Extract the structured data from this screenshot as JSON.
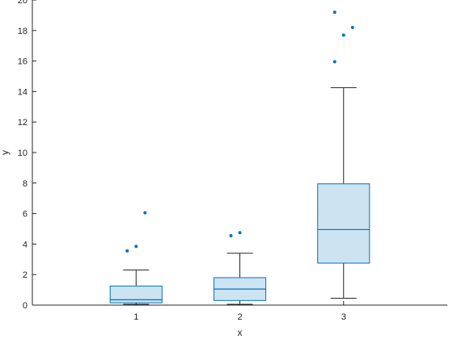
{
  "chart_data": {
    "type": "box",
    "xlabel": "x",
    "ylabel": "y",
    "ylim": [
      0,
      20
    ],
    "xlim": [
      0,
      4
    ],
    "yticks": [
      0,
      2,
      4,
      6,
      8,
      10,
      12,
      14,
      16,
      18,
      20
    ],
    "xticks": [
      1,
      2,
      3
    ],
    "colors": {
      "box_fill": "#cce3f2",
      "box_stroke": "#0072bd",
      "whisker": "#262626",
      "outlier": "#0072bd",
      "axis": "#262626"
    },
    "boxes": [
      {
        "x": 1,
        "whisker_low": 0.05,
        "q1": 0.15,
        "median": 0.35,
        "q3": 1.25,
        "whisker_high": 2.3,
        "outliers": [
          3.55,
          3.85,
          6.05
        ]
      },
      {
        "x": 2,
        "whisker_low": 0.05,
        "q1": 0.3,
        "median": 1.05,
        "q3": 1.8,
        "whisker_high": 3.4,
        "outliers": [
          4.55,
          4.75
        ]
      },
      {
        "x": 3,
        "whisker_low": 0.45,
        "q1": 2.75,
        "median": 4.95,
        "q3": 7.95,
        "whisker_high": 14.25,
        "outliers": [
          15.95,
          17.7,
          18.2,
          19.2
        ]
      }
    ]
  }
}
